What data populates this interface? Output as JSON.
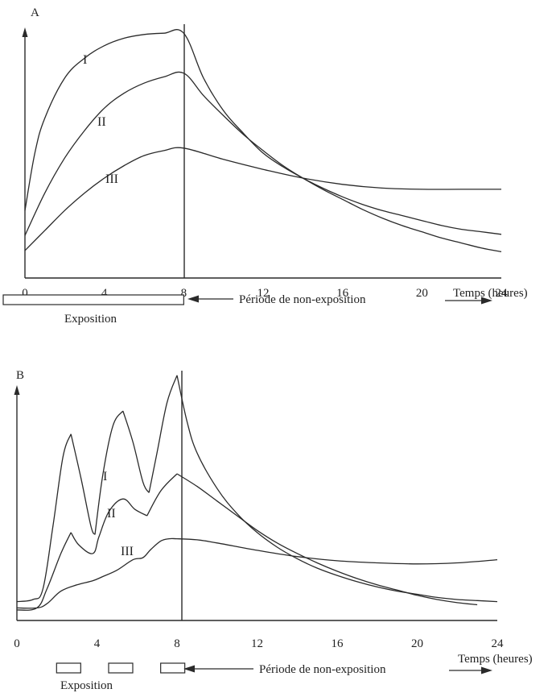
{
  "chart_data": [
    {
      "type": "line",
      "panel_label": "A",
      "x_ticks": [
        "0",
        "4",
        "8",
        "12",
        "16",
        "20",
        "24"
      ],
      "xlabel": "Temps (heures)",
      "xlim": [
        0,
        24
      ],
      "legend": "none",
      "grid": false,
      "exposure_label": "Exposition",
      "non_exposure_label": "Période de non-exposition",
      "exposure_periods": [
        [
          0,
          8
        ]
      ],
      "series": [
        {
          "name": "I",
          "x": [
            0,
            0.5,
            1,
            2,
            3,
            4,
            5,
            6,
            7,
            8,
            9,
            10,
            11,
            12,
            13,
            14,
            15,
            16,
            17,
            18,
            19,
            20,
            21,
            22,
            23,
            24
          ],
          "y": [
            2.7,
            5.0,
            6.4,
            8.0,
            8.8,
            9.3,
            9.6,
            9.75,
            9.8,
            9.8,
            8.0,
            6.7,
            5.8,
            5.0,
            4.45,
            4.0,
            3.6,
            3.25,
            2.95,
            2.7,
            2.5,
            2.3,
            2.1,
            1.95,
            1.85,
            1.75
          ]
        },
        {
          "name": "II",
          "x": [
            0,
            1,
            2,
            3,
            4,
            5,
            6,
            7,
            8,
            9,
            10,
            11,
            12,
            13,
            14,
            15,
            16,
            17,
            18,
            19,
            20,
            21,
            22,
            23,
            24
          ],
          "y": [
            1.7,
            3.4,
            4.8,
            5.9,
            6.8,
            7.4,
            7.8,
            8.05,
            8.2,
            7.3,
            6.5,
            5.75,
            5.1,
            4.5,
            4.0,
            3.55,
            3.15,
            2.75,
            2.4,
            2.1,
            1.85,
            1.6,
            1.4,
            1.2,
            1.05
          ]
        },
        {
          "name": "III",
          "x": [
            0,
            1,
            2,
            3,
            4,
            5,
            6,
            7,
            8,
            10,
            12,
            14,
            16,
            18,
            20,
            22,
            24
          ],
          "y": [
            1.1,
            1.9,
            2.7,
            3.4,
            4.0,
            4.5,
            4.9,
            5.1,
            5.2,
            4.75,
            4.35,
            4.0,
            3.75,
            3.6,
            3.55,
            3.55,
            3.55
          ]
        }
      ]
    },
    {
      "type": "line",
      "panel_label": "B",
      "x_ticks": [
        "0",
        "4",
        "8",
        "12",
        "16",
        "20",
        "24"
      ],
      "xlabel": "Temps (heures)",
      "xlim": [
        0,
        24
      ],
      "legend": "none",
      "grid": false,
      "exposure_label": "Exposition",
      "non_exposure_label": "Période de non-exposition",
      "exposure_periods": [
        [
          1.5,
          3.1
        ],
        [
          4.1,
          5.7
        ],
        [
          6.7,
          8.0
        ]
      ],
      "series": [
        {
          "name": "I",
          "x": [
            0,
            0.8,
            1.3,
            1.8,
            2.3,
            2.7,
            3.2,
            3.7,
            3.9,
            4.3,
            4.8,
            5.3,
            5.8,
            6.3,
            6.6,
            7.0,
            7.5,
            8.0,
            8.5,
            9,
            10,
            11,
            12,
            13,
            14,
            15,
            16,
            17,
            18,
            19,
            20,
            21,
            22,
            23,
            24
          ],
          "y": [
            0.9,
            1.0,
            1.5,
            4.5,
            7.8,
            8.9,
            6.8,
            4.5,
            4.1,
            7.0,
            9.3,
            10.0,
            8.5,
            6.6,
            6.1,
            8.0,
            10.4,
            11.7,
            9.5,
            8.0,
            6.3,
            5.1,
            4.2,
            3.5,
            2.95,
            2.5,
            2.15,
            1.85,
            1.6,
            1.4,
            1.25,
            1.1,
            1.0,
            0.95,
            0.9
          ]
        },
        {
          "name": "II",
          "x": [
            0,
            1,
            1.5,
            2.2,
            2.7,
            3.1,
            3.8,
            4.1,
            4.6,
            5.3,
            5.9,
            6.5,
            7.2,
            8.0,
            9,
            10,
            11,
            12,
            13,
            14,
            15,
            16,
            17,
            18,
            19,
            20,
            21,
            22,
            23
          ],
          "y": [
            0.5,
            0.6,
            1.5,
            3.2,
            4.2,
            3.6,
            3.2,
            4.0,
            5.2,
            5.8,
            5.3,
            5.0,
            6.2,
            7.0,
            6.4,
            5.7,
            5.0,
            4.3,
            3.7,
            3.2,
            2.75,
            2.35,
            2.0,
            1.7,
            1.45,
            1.2,
            1.0,
            0.85,
            0.75
          ]
        },
        {
          "name": "III",
          "x": [
            0,
            1,
            1.5,
            2.2,
            3.0,
            3.8,
            4.3,
            5.0,
            5.8,
            6.3,
            6.7,
            7.2,
            7.6,
            8.0,
            9,
            10,
            12,
            14,
            16,
            18,
            20,
            22,
            24
          ],
          "y": [
            0.6,
            0.6,
            0.8,
            1.4,
            1.7,
            1.9,
            2.1,
            2.4,
            2.9,
            3.0,
            3.4,
            3.8,
            3.9,
            3.9,
            3.85,
            3.7,
            3.35,
            3.05,
            2.85,
            2.75,
            2.7,
            2.75,
            2.9
          ]
        }
      ]
    }
  ]
}
